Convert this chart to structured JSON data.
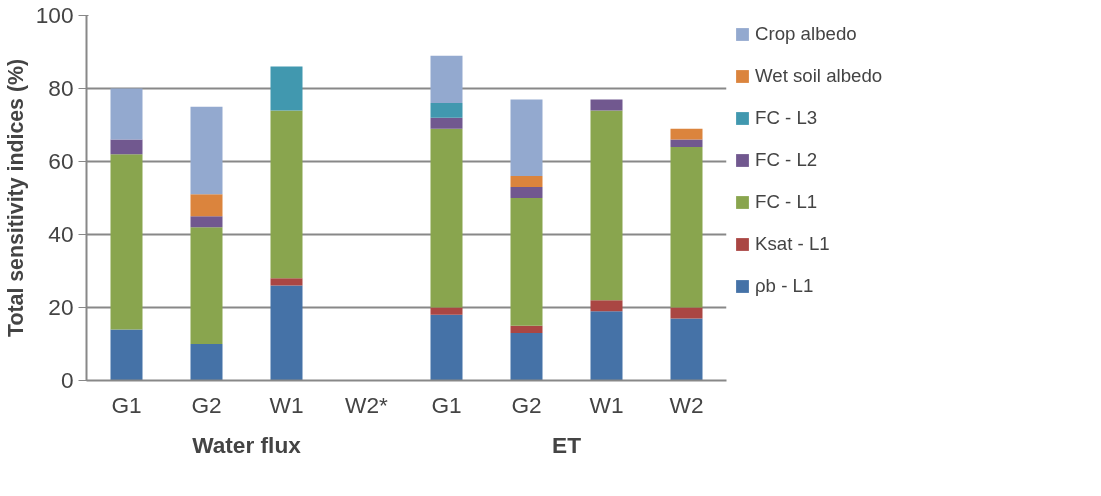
{
  "chart_data": {
    "type": "bar",
    "stacked": true,
    "ylabel": "Total sensitivity indices (%)",
    "categories": [
      "G1",
      "G2",
      "W1",
      "W2*",
      "G1",
      "G2",
      "W1",
      "W2"
    ],
    "series": [
      {
        "name": "ρb - L1",
        "color": "#4572a7",
        "values": [
          14,
          10,
          26,
          null,
          18,
          13,
          19,
          17
        ]
      },
      {
        "name": "Ksat - L1",
        "color": "#aa4643",
        "values": [
          0,
          0,
          2,
          null,
          2,
          2,
          3,
          3
        ]
      },
      {
        "name": "FC - L1",
        "color": "#89a54e",
        "values": [
          48,
          32,
          46,
          null,
          49,
          35,
          52,
          44
        ]
      },
      {
        "name": "FC - L2",
        "color": "#71588f",
        "values": [
          4,
          3,
          0,
          null,
          3,
          3,
          3,
          2
        ]
      },
      {
        "name": "FC - L3",
        "color": "#4198af",
        "values": [
          0,
          0,
          12,
          null,
          4,
          0,
          0,
          0
        ]
      },
      {
        "name": "Wet soil albedo",
        "color": "#db843d",
        "values": [
          0,
          6,
          0,
          null,
          0,
          3,
          0,
          3
        ]
      },
      {
        "name": "Crop albedo",
        "color": "#93a9cf",
        "values": [
          14,
          24,
          0,
          null,
          13,
          21,
          0,
          0
        ]
      }
    ],
    "ylim": [
      0,
      100
    ],
    "yticks": [
      0,
      20,
      40,
      60,
      80,
      100
    ],
    "grid": "y",
    "legend": "right",
    "annotations": [
      "Water flux",
      "ET"
    ]
  }
}
